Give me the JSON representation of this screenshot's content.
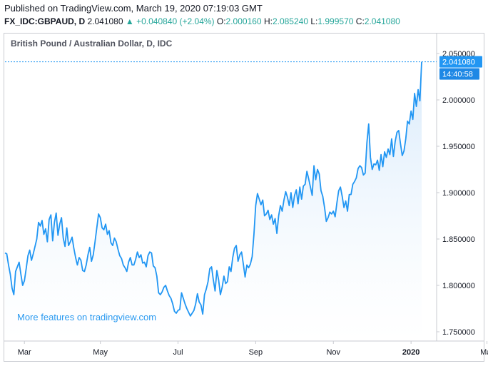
{
  "header": {
    "published": "Published on TradingView.com, March 19, 2020 07:19:03 GMT",
    "symbol": "FX_IDC:GBPAUD, D",
    "last": "2.041080",
    "arrow": "▲",
    "change": "+0.040840 (+2.04%)",
    "o_label": "O:",
    "o_value": "2.000160",
    "h_label": "H:",
    "h_value": "2.085240",
    "l_label": "L:",
    "l_value": "1.999570",
    "c_label": "C:",
    "c_value": "2.041080"
  },
  "price_tag": {
    "value": "2.041080",
    "countdown": "14:40:58"
  },
  "watermark": "More features on tradingview.com",
  "colors": {
    "line": "#2196f3",
    "area_top": "#d6e9fb",
    "tag_bg": "#2196f3",
    "tag_bg2": "#1e88e5",
    "positive": "#26a69a"
  },
  "chart_data": {
    "type": "area",
    "title": "British Pound / Australian Dollar, D, IDC",
    "xlabel": "",
    "ylabel": "",
    "ylim": [
      1.745,
      2.057
    ],
    "yticks": [
      "2.050000",
      "2.000000",
      "1.950000",
      "1.900000",
      "1.850000",
      "1.800000",
      "1.750000"
    ],
    "yticks_values": [
      2.05,
      2.0,
      1.95,
      1.9,
      1.85,
      1.8,
      1.75
    ],
    "xticks": [
      {
        "label": "Mar",
        "index": 11
      },
      {
        "label": "May",
        "index": 54
      },
      {
        "label": "Jul",
        "index": 98
      },
      {
        "label": "Sep",
        "index": 142
      },
      {
        "label": "Nov",
        "index": 186
      },
      {
        "label": "2020",
        "index": 230
      },
      {
        "label": "Mar",
        "index": 273
      }
    ],
    "last_value": 2.04108,
    "series": [
      {
        "name": "GBPAUD",
        "values": [
          1.835,
          1.834,
          1.822,
          1.812,
          1.797,
          1.79,
          1.815,
          1.82,
          1.825,
          1.812,
          1.8,
          1.805,
          1.818,
          1.832,
          1.838,
          1.827,
          1.834,
          1.842,
          1.85,
          1.868,
          1.864,
          1.87,
          1.855,
          1.861,
          1.847,
          1.871,
          1.876,
          1.848,
          1.868,
          1.878,
          1.854,
          1.866,
          1.873,
          1.851,
          1.842,
          1.862,
          1.843,
          1.847,
          1.852,
          1.84,
          1.83,
          1.822,
          1.83,
          1.827,
          1.816,
          1.815,
          1.822,
          1.833,
          1.841,
          1.826,
          1.833,
          1.847,
          1.862,
          1.877,
          1.873,
          1.862,
          1.86,
          1.866,
          1.855,
          1.859,
          1.846,
          1.843,
          1.851,
          1.847,
          1.839,
          1.832,
          1.829,
          1.822,
          1.819,
          1.815,
          1.825,
          1.83,
          1.822,
          1.822,
          1.828,
          1.836,
          1.83,
          1.833,
          1.824,
          1.825,
          1.82,
          1.832,
          1.836,
          1.835,
          1.821,
          1.819,
          1.81,
          1.792,
          1.79,
          1.793,
          1.798,
          1.8,
          1.794,
          1.789,
          1.786,
          1.78,
          1.772,
          1.77,
          1.773,
          1.774,
          1.792,
          1.786,
          1.78,
          1.775,
          1.771,
          1.767,
          1.77,
          1.773,
          1.78,
          1.791,
          1.782,
          1.779,
          1.769,
          1.79,
          1.796,
          1.804,
          1.818,
          1.82,
          1.806,
          1.794,
          1.816,
          1.806,
          1.79,
          1.798,
          1.81,
          1.802,
          1.804,
          1.82,
          1.815,
          1.83,
          1.84,
          1.843,
          1.826,
          1.833,
          1.836,
          1.823,
          1.809,
          1.822,
          1.819,
          1.823,
          1.831,
          1.855,
          1.886,
          1.899,
          1.893,
          1.887,
          1.892,
          1.875,
          1.877,
          1.881,
          1.871,
          1.876,
          1.866,
          1.872,
          1.856,
          1.875,
          1.886,
          1.88,
          1.892,
          1.901,
          1.895,
          1.886,
          1.9,
          1.884,
          1.897,
          1.903,
          1.888,
          1.906,
          1.893,
          1.907,
          1.909,
          1.923,
          1.915,
          1.906,
          1.897,
          1.929,
          1.914,
          1.925,
          1.92,
          1.902,
          1.896,
          1.884,
          1.869,
          1.873,
          1.879,
          1.877,
          1.88,
          1.874,
          1.889,
          1.902,
          1.906,
          1.896,
          1.884,
          1.891,
          1.88,
          1.898,
          1.898,
          1.909,
          1.912,
          1.916,
          1.926,
          1.929,
          1.927,
          1.919,
          1.921,
          1.954,
          1.974,
          1.938,
          1.925,
          1.931,
          1.93,
          1.935,
          1.924,
          1.941,
          1.928,
          1.944,
          1.938,
          1.947,
          1.941,
          1.958,
          1.939,
          1.955,
          1.965,
          1.967,
          1.953,
          1.94,
          1.945,
          1.958,
          1.977,
          1.974,
          1.988,
          1.979,
          2.007,
          1.993,
          2.011,
          1.999,
          2.041
        ]
      }
    ]
  }
}
